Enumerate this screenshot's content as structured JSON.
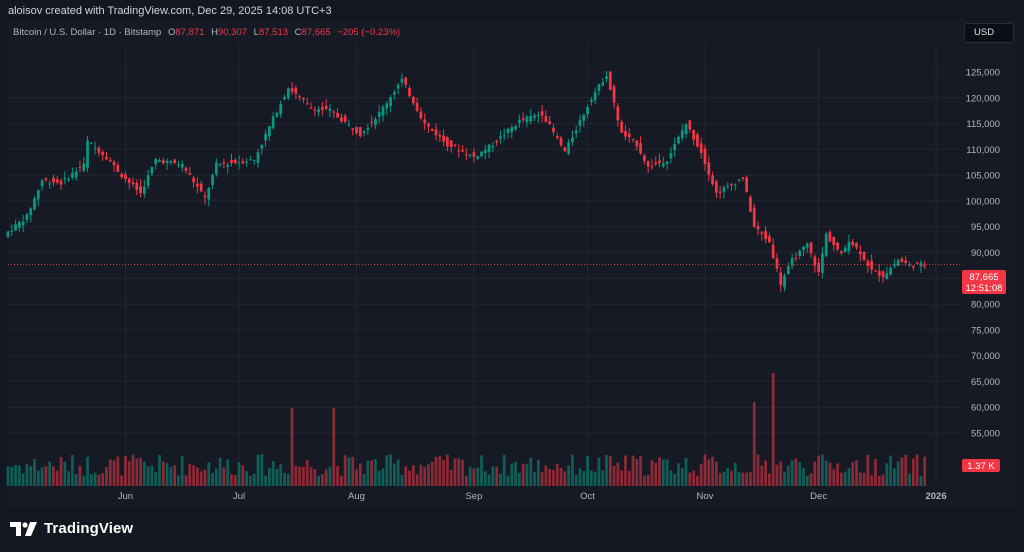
{
  "header": {
    "credit": "aloisov created with TradingView.com, Dec 29, 2025 14:08 UTC+3"
  },
  "legend": {
    "symbol": "Bitcoin / U.S. Dollar · 1D · Bitstamp",
    "open_label": "O",
    "open": "87,871",
    "high_label": "H",
    "high": "90,307",
    "low_label": "L",
    "low": "87,513",
    "close_label": "C",
    "close": "87,665",
    "change": "−205 (−0.23%)"
  },
  "currency_button": "USD",
  "price_tag": {
    "price": "87,665",
    "countdown": "12:51:08"
  },
  "volume_tag": "1.37 K",
  "brand": {
    "name": "TradingView"
  },
  "colors": {
    "up": "#089981",
    "down": "#f23645",
    "background": "#161a25",
    "grid": "#242733"
  },
  "chart_data": {
    "type": "candlestick",
    "title": "Bitcoin / U.S. Dollar · 1D · Bitstamp",
    "y_ticks": [
      "55,000",
      "60,000",
      "65,000",
      "70,000",
      "75,000",
      "80,000",
      "85,000",
      "90,000",
      "95,000",
      "100,000",
      "105,000",
      "110,000",
      "115,000",
      "120,000",
      "125,000"
    ],
    "y_tick_values": [
      55000,
      60000,
      65000,
      70000,
      75000,
      80000,
      85000,
      90000,
      95000,
      100000,
      105000,
      110000,
      115000,
      120000,
      125000
    ],
    "x_ticks": [
      "Jun",
      "Jul",
      "Aug",
      "Sep",
      "Oct",
      "Nov",
      "Dec",
      "2026"
    ],
    "x_tick_dates": [
      "2025-06-01",
      "2025-07-01",
      "2025-08-01",
      "2025-09-01",
      "2025-10-01",
      "2025-11-01",
      "2025-12-01",
      "2026-01-01"
    ],
    "ylim": [
      50000,
      130000
    ],
    "xlim": [
      "2025-05-01",
      "2026-01-06"
    ],
    "last_price": 87665,
    "grid": true,
    "close_path": [
      {
        "date": "2025-05-01",
        "close": 94000
      },
      {
        "date": "2025-05-06",
        "close": 97000
      },
      {
        "date": "2025-05-10",
        "close": 104000
      },
      {
        "date": "2025-05-15",
        "close": 103500
      },
      {
        "date": "2025-05-21",
        "close": 107000
      },
      {
        "date": "2025-05-22",
        "close": 111500
      },
      {
        "date": "2025-05-27",
        "close": 108500
      },
      {
        "date": "2025-05-31",
        "close": 105000
      },
      {
        "date": "2025-06-05",
        "close": 101500
      },
      {
        "date": "2025-06-09",
        "close": 108000
      },
      {
        "date": "2025-06-16",
        "close": 107000
      },
      {
        "date": "2025-06-22",
        "close": 100500
      },
      {
        "date": "2025-06-25",
        "close": 107000
      },
      {
        "date": "2025-06-30",
        "close": 107500
      },
      {
        "date": "2025-07-05",
        "close": 108000
      },
      {
        "date": "2025-07-10",
        "close": 116000
      },
      {
        "date": "2025-07-14",
        "close": 122000
      },
      {
        "date": "2025-07-20",
        "close": 118000
      },
      {
        "date": "2025-07-25",
        "close": 117500
      },
      {
        "date": "2025-08-02",
        "close": 113000
      },
      {
        "date": "2025-08-07",
        "close": 117000
      },
      {
        "date": "2025-08-13",
        "close": 123500
      },
      {
        "date": "2025-08-19",
        "close": 115000
      },
      {
        "date": "2025-08-25",
        "close": 111000
      },
      {
        "date": "2025-09-01",
        "close": 108500
      },
      {
        "date": "2025-09-06",
        "close": 111000
      },
      {
        "date": "2025-09-13",
        "close": 115500
      },
      {
        "date": "2025-09-19",
        "close": 117000
      },
      {
        "date": "2025-09-25",
        "close": 109500
      },
      {
        "date": "2025-10-02",
        "close": 120000
      },
      {
        "date": "2025-10-06",
        "close": 124500
      },
      {
        "date": "2025-10-10",
        "close": 113000
      },
      {
        "date": "2025-10-14",
        "close": 111000
      },
      {
        "date": "2025-10-17",
        "close": 106500
      },
      {
        "date": "2025-10-22",
        "close": 108000
      },
      {
        "date": "2025-10-27",
        "close": 115000
      },
      {
        "date": "2025-10-31",
        "close": 109500
      },
      {
        "date": "2025-11-04",
        "close": 101500
      },
      {
        "date": "2025-11-11",
        "close": 104500
      },
      {
        "date": "2025-11-14",
        "close": 95000
      },
      {
        "date": "2025-11-18",
        "close": 92000
      },
      {
        "date": "2025-11-21",
        "close": 84000
      },
      {
        "date": "2025-11-24",
        "close": 88500
      },
      {
        "date": "2025-11-28",
        "close": 91500
      },
      {
        "date": "2025-12-01",
        "close": 86000
      },
      {
        "date": "2025-12-03",
        "close": 93500
      },
      {
        "date": "2025-12-07",
        "close": 89500
      },
      {
        "date": "2025-12-09",
        "close": 92500
      },
      {
        "date": "2025-12-12",
        "close": 90000
      },
      {
        "date": "2025-12-15",
        "close": 86500
      },
      {
        "date": "2025-12-18",
        "close": 85500
      },
      {
        "date": "2025-12-22",
        "close": 88500
      },
      {
        "date": "2025-12-25",
        "close": 87500
      },
      {
        "date": "2025-12-29",
        "close": 87665
      }
    ]
  }
}
